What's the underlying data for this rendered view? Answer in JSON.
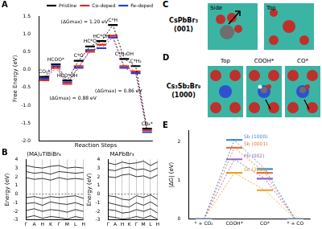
{
  "panel_labels": [
    "A",
    "B",
    "C",
    "D",
    "E"
  ],
  "chart_data": [
    {
      "type": "line",
      "xlabel": "Reaction Steps",
      "ylabel": "Free Energy (eV)",
      "categories": [
        "CO₂*",
        "HCOO*",
        "HCO*OH",
        "C*O",
        "HC*O",
        "HC*OH",
        "C*H",
        "C*H₃OH",
        "C*H₃",
        "CH₄*"
      ],
      "series": [
        {
          "name": "Pristine",
          "color": "#000000",
          "values": [
            -0.2,
            0.15,
            -0.3,
            0.25,
            0.65,
            0.8,
            1.25,
            0.3,
            0.1,
            -1.65
          ]
        },
        {
          "name": "Co-doped",
          "color": "#e8281f",
          "values": [
            -0.3,
            0.05,
            -0.4,
            0.1,
            0.5,
            0.7,
            0.95,
            0.1,
            -0.05,
            -1.7
          ]
        },
        {
          "name": "Fe-doped",
          "color": "#2140d6",
          "values": [
            -0.25,
            0.1,
            -0.35,
            0.05,
            0.55,
            0.6,
            0.9,
            0.05,
            -0.1,
            -1.75
          ]
        }
      ],
      "marker": "hline",
      "line_style": "dashed",
      "ylim": [
        -2,
        1.5
      ],
      "yticks": [
        {
          "value": -2,
          "label": "-2.0"
        },
        -1.5,
        {
          "value": -1,
          "label": "-1.0"
        },
        -0.5,
        {
          "value": 0,
          "label": "0.0"
        },
        0.5,
        {
          "value": 1,
          "label": "1.0"
        },
        1.5
      ],
      "legend": "upper right",
      "grid": false,
      "tick_labels": "y",
      "annotations": [
        "(ΔGmax) = 1.20 eV",
        "(ΔGmax) = 0.88 eV",
        "(ΔGmax) = 0.86 eV"
      ]
    },
    {
      "type": "line",
      "title": "(MA)₂TlBiBr₆",
      "ylabel": "Energy (eV)",
      "categories": [
        "Γ",
        "A",
        "H",
        "K",
        "Γ",
        "M",
        "L",
        "H"
      ],
      "series": [
        {
          "color": "#000000",
          "values": [
            1.9,
            1.7,
            1.8,
            1.6,
            1.9,
            1.7,
            1.8,
            1.7
          ]
        },
        {
          "color": "#000000",
          "values": [
            2.6,
            2.4,
            2.5,
            2.3,
            2.6,
            2.5,
            2.4,
            2.5
          ]
        },
        {
          "color": "#000000",
          "values": [
            3.3,
            3.1,
            3.0,
            3.2,
            3.3,
            3.0,
            3.1,
            3.0
          ]
        },
        {
          "color": "#000000",
          "values": [
            -0.4,
            -0.3,
            -0.5,
            -0.3,
            -0.4,
            -0.3,
            -0.2,
            -0.5
          ]
        },
        {
          "color": "#000000",
          "values": [
            -1.1,
            -1.0,
            -1.3,
            -0.9,
            -1.1,
            -1.2,
            -1.0,
            -1.3
          ]
        },
        {
          "color": "#000000",
          "values": [
            -1.9,
            -1.7,
            -2.0,
            -1.8,
            -1.9,
            -2.1,
            -1.8,
            -2.0
          ]
        },
        {
          "color": "#000000",
          "values": [
            -2.7,
            -2.5,
            -2.8,
            -2.6,
            -2.7,
            -2.9,
            -2.6,
            -2.8
          ]
        },
        {
          "color": "#555555",
          "line_style": "dashed",
          "values": [
            0,
            0,
            0,
            0,
            0,
            0,
            0,
            0
          ]
        }
      ],
      "ylim": [
        -3,
        4
      ],
      "yticks": [
        -3,
        -2,
        -1,
        0,
        1,
        2,
        3,
        4
      ],
      "grid": true
    },
    {
      "type": "line",
      "title": "MAPbBr₃",
      "ylabel": "Energy (eV)",
      "categories": [
        "Γ",
        "A",
        "H",
        "K",
        "Γ",
        "M",
        "L",
        "H"
      ],
      "series": [
        {
          "color": "#000000",
          "values": [
            2.0,
            1.9,
            2.2,
            2.3,
            2.0,
            2.1,
            1.8,
            2.2
          ]
        },
        {
          "color": "#000000",
          "values": [
            2.8,
            2.7,
            3.0,
            3.1,
            2.8,
            2.9,
            2.6,
            3.0
          ]
        },
        {
          "color": "#000000",
          "values": [
            3.6,
            3.4,
            3.7,
            3.5,
            3.6,
            3.8,
            3.3,
            3.7
          ]
        },
        {
          "color": "#000000",
          "values": [
            -0.2,
            -0.3,
            -0.6,
            -0.7,
            -0.2,
            -0.4,
            -0.1,
            -0.6
          ]
        },
        {
          "color": "#000000",
          "values": [
            -1.0,
            -1.2,
            -1.4,
            -1.5,
            -1.0,
            -1.3,
            -0.9,
            -1.4
          ]
        },
        {
          "color": "#000000",
          "values": [
            -1.8,
            -1.9,
            -2.2,
            -2.1,
            -1.8,
            -2.0,
            -1.7,
            -2.2
          ]
        },
        {
          "color": "#000000",
          "values": [
            -2.6,
            -2.7,
            -2.9,
            -2.8,
            -2.6,
            -2.8,
            -2.5,
            -2.9
          ]
        },
        {
          "color": "#555555",
          "line_style": "dashed",
          "values": [
            0,
            0,
            0,
            0,
            0,
            0,
            0,
            0
          ]
        }
      ],
      "ylim": [
        -3,
        4
      ],
      "yticks": [
        -3,
        -2,
        -1,
        0,
        1,
        2,
        3,
        4
      ],
      "grid": true
    },
    {
      "type": "line",
      "ylabel": "|ΔG| (eV)",
      "categories": [
        "* + CO₂",
        "COOH*",
        "CO*",
        "* + CO"
      ],
      "series": [
        {
          "name": "Sb (1000)",
          "color": "#3a8fd0",
          "values": [
            0,
            2.05,
            1.3,
            0
          ]
        },
        {
          "name": "Sb (0001)",
          "color": "#e8743b",
          "values": [
            0,
            1.85,
            1.2,
            0
          ]
        },
        {
          "name": "Pb (002)",
          "color": "#9467bd",
          "values": [
            0,
            1.55,
            1.05,
            0
          ]
        },
        {
          "name": "Sb (2021)",
          "color": "#f0a020",
          "values": [
            0,
            1.2,
            0.75,
            0
          ]
        }
      ],
      "marker": "hline",
      "line_style": "dashed",
      "ylim": [
        0,
        2.3
      ],
      "yticks": [
        0,
        1,
        2
      ],
      "grid": false
    }
  ],
  "structures": [
    {
      "title": "CsPbBr₃",
      "facet": "(001)",
      "views": [
        "Side",
        "Top"
      ]
    },
    {
      "title": "Cs₃Sb₂Br₉",
      "facet": "(1000)",
      "views": [
        "Top",
        "COOH*",
        "CO*"
      ]
    }
  ]
}
